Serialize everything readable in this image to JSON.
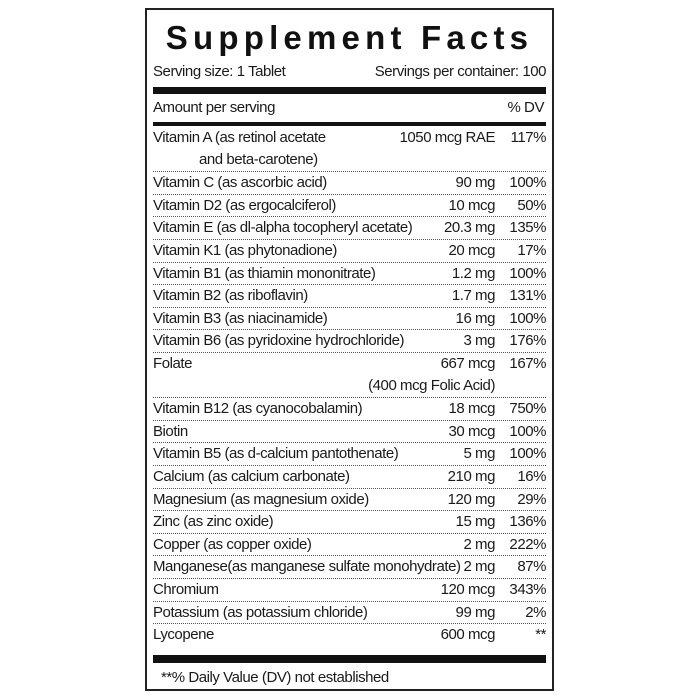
{
  "title": "Supplement Facts",
  "serving_size": "Serving size: 1 Tablet",
  "servings_per_container": "Servings per container: 100",
  "header": {
    "amount": "Amount per serving",
    "dv": "% DV"
  },
  "rows": [
    {
      "name": "Vitamin A (as retinol acetate",
      "name2": "and beta-carotene)",
      "amount": "1050 mcg RAE",
      "dv": "117%"
    },
    {
      "name": "Vitamin C (as ascorbic acid)",
      "amount": "90 mg",
      "dv": "100%"
    },
    {
      "name": "Vitamin D2 (as ergocalciferol)",
      "amount": "10 mcg",
      "dv": "50%"
    },
    {
      "name": "Vitamin E (as dl-alpha tocopheryl acetate)",
      "amount": "20.3 mg",
      "dv": "135%"
    },
    {
      "name": "Vitamin K1 (as phytonadione)",
      "amount": "20 mcg",
      "dv": "17%"
    },
    {
      "name": "Vitamin B1 (as thiamin mononitrate)",
      "amount": "1.2 mg",
      "dv": "100%"
    },
    {
      "name": "Vitamin B2 (as riboflavin)",
      "amount": "1.7 mg",
      "dv": "131%"
    },
    {
      "name": "Vitamin B3 (as niacinamide)",
      "amount": "16 mg",
      "dv": "100%"
    },
    {
      "name": "Vitamin B6 (as pyridoxine hydrochloride)",
      "amount": "3 mg",
      "dv": "176%"
    },
    {
      "name": "Folate",
      "amount": "667 mcg",
      "amount2": "(400 mcg Folic Acid)",
      "dv": "167%"
    },
    {
      "name": "Vitamin B12 (as cyanocobalamin)",
      "amount": "18 mcg",
      "dv": "750%"
    },
    {
      "name": "Biotin",
      "amount": "30 mcg",
      "dv": "100%"
    },
    {
      "name": "Vitamin B5 (as d-calcium pantothenate)",
      "amount": "5 mg",
      "dv": "100%"
    },
    {
      "name": "Calcium (as calcium carbonate)",
      "amount": "210 mg",
      "dv": "16%"
    },
    {
      "name": "Magnesium (as magnesium oxide)",
      "amount": "120 mg",
      "dv": "29%"
    },
    {
      "name": "Zinc (as zinc oxide)",
      "amount": "15 mg",
      "dv": "136%"
    },
    {
      "name": "Copper (as copper oxide)",
      "amount": "2 mg",
      "dv": "222%"
    },
    {
      "name": "Manganese(as manganese sulfate monohydrate)",
      "amount": "2 mg",
      "dv": "87%"
    },
    {
      "name": "Chromium",
      "amount": "120 mcg",
      "dv": "343%"
    },
    {
      "name": "Potassium (as potassium chloride)",
      "amount": "99 mg",
      "dv": "2%"
    },
    {
      "name": "Lycopene",
      "amount": "600 mcg",
      "dv": "**"
    }
  ],
  "footnote": "**% Daily Value (DV) not established"
}
